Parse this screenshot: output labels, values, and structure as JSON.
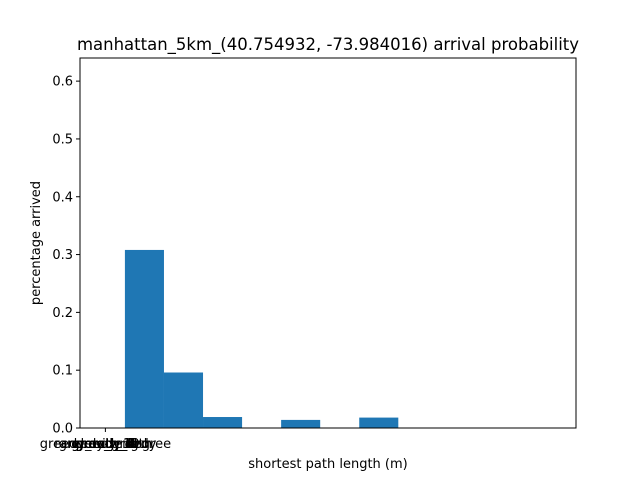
{
  "chart_data": {
    "type": "bar",
    "title": "manhattan_5km_(40.754932, -73.984016) arrival probability",
    "xlabel": "shortest path length (m)",
    "ylabel": "percentage arrived",
    "ylim": [
      0,
      0.64
    ],
    "yticks": [
      0.0,
      0.1,
      0.2,
      0.3,
      0.4,
      0.5,
      0.6
    ],
    "ytick_labels": [
      "0.0",
      "0.1",
      "0.2",
      "0.3",
      "0.4",
      "0.5",
      "0.6"
    ],
    "xlim": [
      -0.65,
      12.05
    ],
    "xticks": [
      {
        "x": 0,
        "labels": [
          "greedy_1",
          "greedy_2",
          "greedy_3",
          "greedy_4",
          "greedy_5",
          "greedy_6",
          "greedy_7",
          "greedy_8",
          "greedy_9",
          "greedy_10",
          "greedy_11",
          "random_greedy",
          "greedy_with_degree",
          "greedy_length"
        ]
      }
    ],
    "bars": [
      {
        "x0": 0.5,
        "x1": 1.5,
        "value": 0.308
      },
      {
        "x0": 1.5,
        "x1": 2.5,
        "value": 0.096
      },
      {
        "x0": 2.5,
        "x1": 3.5,
        "value": 0.019
      },
      {
        "x0": 4.5,
        "x1": 5.5,
        "value": 0.014
      },
      {
        "x0": 6.5,
        "x1": 7.5,
        "value": 0.018
      }
    ],
    "bar_color": "#1f77b4",
    "grid": false,
    "legend": "none"
  }
}
